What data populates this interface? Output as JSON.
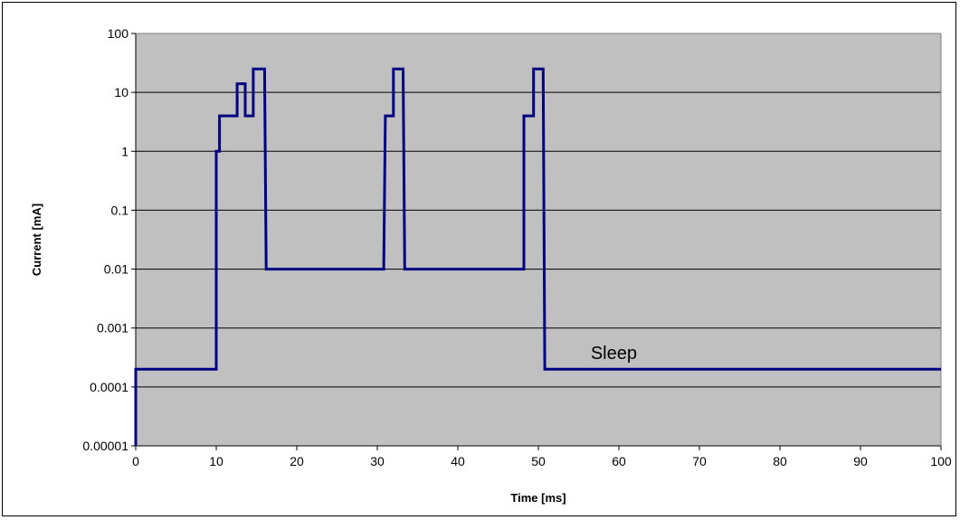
{
  "chart_data": {
    "type": "line",
    "xlabel": "Time [ms]",
    "ylabel": "Current [mA]",
    "xlim": [
      0,
      100
    ],
    "ylim": [
      1e-05,
      100
    ],
    "y_scale": "log",
    "grid": "horizontal",
    "plot_background": "#c0c0c0",
    "line_color": "#000080",
    "x_ticks": [
      "0",
      "10",
      "20",
      "30",
      "40",
      "50",
      "60",
      "70",
      "80",
      "90",
      "100"
    ],
    "y_ticks": [
      "0.00001",
      "0.0001",
      "0.001",
      "0.01",
      "0.1",
      "1",
      "10",
      "100"
    ],
    "annotations": [
      {
        "text": "Sleep",
        "x": 56.5,
        "y": 0.0003
      }
    ],
    "series": [
      {
        "points": [
          [
            0,
            1e-05
          ],
          [
            0,
            0.0002
          ],
          [
            10,
            0.0002
          ],
          [
            10,
            1
          ],
          [
            10.4,
            1
          ],
          [
            10.4,
            4
          ],
          [
            12.6,
            4
          ],
          [
            12.6,
            14
          ],
          [
            13.6,
            14
          ],
          [
            13.6,
            4
          ],
          [
            14.6,
            4
          ],
          [
            14.6,
            25
          ],
          [
            16.0,
            25
          ],
          [
            16.2,
            0.01
          ],
          [
            30.8,
            0.01
          ],
          [
            31.0,
            4
          ],
          [
            32.0,
            4
          ],
          [
            32.0,
            25
          ],
          [
            33.2,
            25
          ],
          [
            33.4,
            0.01
          ],
          [
            48.2,
            0.01
          ],
          [
            48.2,
            4
          ],
          [
            49.4,
            4
          ],
          [
            49.4,
            25
          ],
          [
            50.6,
            25
          ],
          [
            50.8,
            0.0002
          ],
          [
            100,
            0.0002
          ]
        ]
      }
    ]
  }
}
